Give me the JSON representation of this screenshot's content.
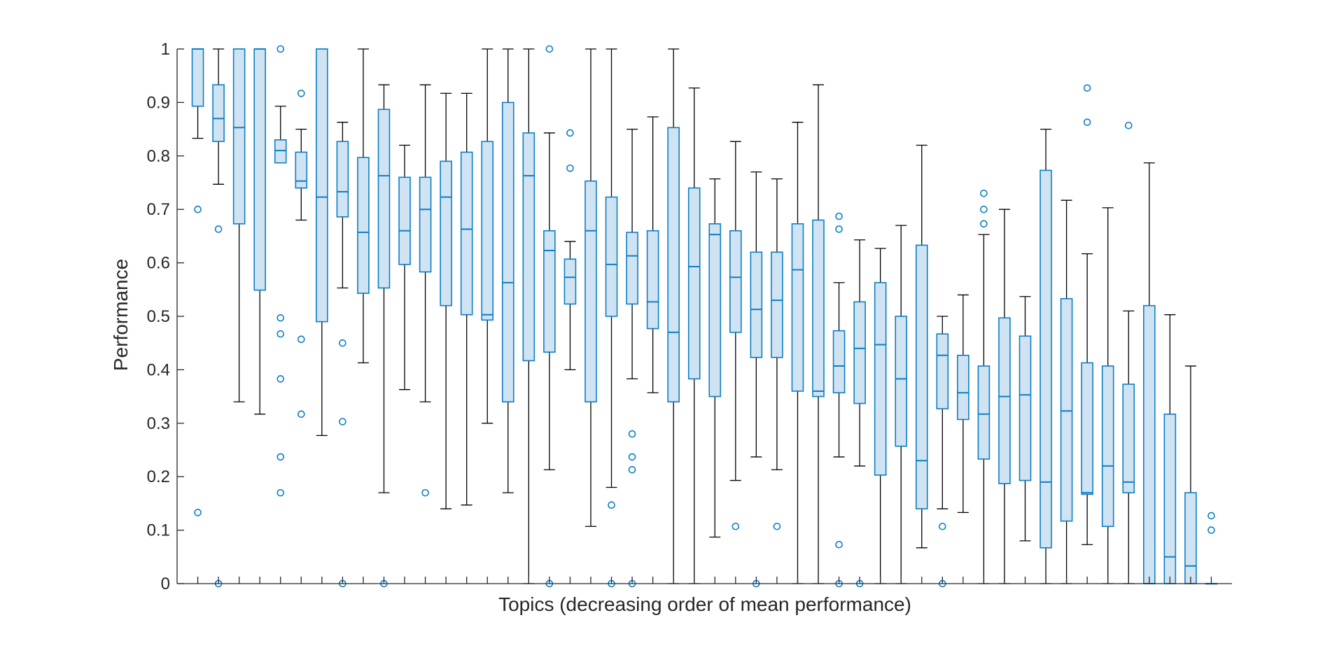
{
  "chart_data": {
    "type": "boxplot",
    "title": "",
    "xlabel": "Topics (decreasing order of mean performance)",
    "ylabel": "Performance",
    "ylim": [
      0,
      1
    ],
    "yticks": [
      0,
      0.1,
      0.2,
      0.3,
      0.4,
      0.5,
      0.6,
      0.7,
      0.8,
      0.9,
      1
    ],
    "ytick_labels": [
      "0",
      "0.1",
      "0.2",
      "0.3",
      "0.4",
      "0.5",
      "0.6",
      "0.7",
      "0.8",
      "0.9",
      "1"
    ],
    "xtick_labels": "none",
    "grid": false,
    "colors": {
      "box_fill": "#cfe3f3",
      "box_edge": "#0d7fc4",
      "whisker": "#000000",
      "outlier": "#0d7fc4",
      "axis": "#262626"
    },
    "boxes": [
      {
        "q1": 0.893,
        "median": 1.0,
        "q3": 1.0,
        "lw": 0.833,
        "uw": 1.0,
        "outliers": [
          0.7,
          0.133
        ]
      },
      {
        "q1": 0.827,
        "median": 0.87,
        "q3": 0.933,
        "lw": 0.747,
        "uw": 1.0,
        "outliers": [
          0.663,
          0.0
        ]
      },
      {
        "q1": 0.673,
        "median": 0.853,
        "q3": 1.0,
        "lw": 0.34,
        "uw": 1.0,
        "outliers": []
      },
      {
        "q1": 0.549,
        "median": 1.0,
        "q3": 1.0,
        "lw": 0.317,
        "uw": 1.0,
        "outliers": []
      },
      {
        "q1": 0.787,
        "median": 0.81,
        "q3": 0.83,
        "lw": 0.787,
        "uw": 0.893,
        "outliers": [
          1.0,
          0.497,
          0.467,
          0.383,
          0.237,
          0.17
        ]
      },
      {
        "q1": 0.74,
        "median": 0.753,
        "q3": 0.807,
        "lw": 0.68,
        "uw": 0.85,
        "outliers": [
          0.917,
          0.457,
          0.317
        ]
      },
      {
        "q1": 0.49,
        "median": 0.723,
        "q3": 1.0,
        "lw": 0.277,
        "uw": 1.0,
        "outliers": []
      },
      {
        "q1": 0.686,
        "median": 0.733,
        "q3": 0.827,
        "lw": 0.553,
        "uw": 0.863,
        "outliers": [
          0.45,
          0.303,
          0.0
        ]
      },
      {
        "q1": 0.543,
        "median": 0.657,
        "q3": 0.797,
        "lw": 0.413,
        "uw": 1.0,
        "outliers": []
      },
      {
        "q1": 0.553,
        "median": 0.763,
        "q3": 0.887,
        "lw": 0.17,
        "uw": 0.933,
        "outliers": [
          0.0
        ]
      },
      {
        "q1": 0.597,
        "median": 0.66,
        "q3": 0.76,
        "lw": 0.363,
        "uw": 0.82,
        "outliers": []
      },
      {
        "q1": 0.583,
        "median": 0.7,
        "q3": 0.76,
        "lw": 0.34,
        "uw": 0.933,
        "outliers": [
          0.17
        ]
      },
      {
        "q1": 0.52,
        "median": 0.723,
        "q3": 0.79,
        "lw": 0.14,
        "uw": 0.917,
        "outliers": []
      },
      {
        "q1": 0.503,
        "median": 0.663,
        "q3": 0.807,
        "lw": 0.147,
        "uw": 0.917,
        "outliers": []
      },
      {
        "q1": 0.493,
        "median": 0.503,
        "q3": 0.827,
        "lw": 0.3,
        "uw": 1.0,
        "outliers": []
      },
      {
        "q1": 0.34,
        "median": 0.563,
        "q3": 0.9,
        "lw": 0.17,
        "uw": 1.0,
        "outliers": []
      },
      {
        "q1": 0.417,
        "median": 0.763,
        "q3": 0.843,
        "lw": 0.0,
        "uw": 1.0,
        "outliers": []
      },
      {
        "q1": 0.433,
        "median": 0.623,
        "q3": 0.66,
        "lw": 0.213,
        "uw": 0.843,
        "outliers": [
          1.0,
          0.0
        ]
      },
      {
        "q1": 0.523,
        "median": 0.573,
        "q3": 0.607,
        "lw": 0.4,
        "uw": 0.64,
        "outliers": [
          0.843,
          0.777
        ]
      },
      {
        "q1": 0.34,
        "median": 0.66,
        "q3": 0.753,
        "lw": 0.107,
        "uw": 1.0,
        "outliers": []
      },
      {
        "q1": 0.5,
        "median": 0.597,
        "q3": 0.723,
        "lw": 0.18,
        "uw": 1.0,
        "outliers": [
          0.147,
          0.0
        ]
      },
      {
        "q1": 0.523,
        "median": 0.613,
        "q3": 0.657,
        "lw": 0.383,
        "uw": 0.85,
        "outliers": [
          0.28,
          0.237,
          0.213,
          0.0
        ]
      },
      {
        "q1": 0.477,
        "median": 0.527,
        "q3": 0.66,
        "lw": 0.357,
        "uw": 0.873,
        "outliers": []
      },
      {
        "q1": 0.34,
        "median": 0.47,
        "q3": 0.853,
        "lw": 0.0,
        "uw": 1.0,
        "outliers": []
      },
      {
        "q1": 0.383,
        "median": 0.593,
        "q3": 0.74,
        "lw": 0.0,
        "uw": 0.927,
        "outliers": []
      },
      {
        "q1": 0.35,
        "median": 0.653,
        "q3": 0.673,
        "lw": 0.087,
        "uw": 0.757,
        "outliers": []
      },
      {
        "q1": 0.47,
        "median": 0.573,
        "q3": 0.66,
        "lw": 0.193,
        "uw": 0.827,
        "outliers": [
          0.107
        ]
      },
      {
        "q1": 0.423,
        "median": 0.513,
        "q3": 0.62,
        "lw": 0.237,
        "uw": 0.77,
        "outliers": [
          0.0
        ]
      },
      {
        "q1": 0.423,
        "median": 0.53,
        "q3": 0.62,
        "lw": 0.213,
        "uw": 0.757,
        "outliers": [
          0.107
        ]
      },
      {
        "q1": 0.36,
        "median": 0.587,
        "q3": 0.673,
        "lw": 0.0,
        "uw": 0.863,
        "outliers": []
      },
      {
        "q1": 0.35,
        "median": 0.36,
        "q3": 0.68,
        "lw": 0.0,
        "uw": 0.933,
        "outliers": []
      },
      {
        "q1": 0.357,
        "median": 0.407,
        "q3": 0.473,
        "lw": 0.237,
        "uw": 0.563,
        "outliers": [
          0.687,
          0.663,
          0.073,
          0.0
        ]
      },
      {
        "q1": 0.337,
        "median": 0.44,
        "q3": 0.527,
        "lw": 0.22,
        "uw": 0.643,
        "outliers": [
          0.0
        ]
      },
      {
        "q1": 0.203,
        "median": 0.447,
        "q3": 0.563,
        "lw": 0.0,
        "uw": 0.627,
        "outliers": []
      },
      {
        "q1": 0.257,
        "median": 0.383,
        "q3": 0.5,
        "lw": 0.0,
        "uw": 0.67,
        "outliers": []
      },
      {
        "q1": 0.14,
        "median": 0.23,
        "q3": 0.633,
        "lw": 0.067,
        "uw": 0.82,
        "outliers": []
      },
      {
        "q1": 0.327,
        "median": 0.427,
        "q3": 0.467,
        "lw": 0.14,
        "uw": 0.5,
        "outliers": [
          0.107,
          0.0
        ]
      },
      {
        "q1": 0.307,
        "median": 0.357,
        "q3": 0.427,
        "lw": 0.133,
        "uw": 0.54,
        "outliers": []
      },
      {
        "q1": 0.233,
        "median": 0.317,
        "q3": 0.407,
        "lw": 0.0,
        "uw": 0.653,
        "outliers": [
          0.73,
          0.7,
          0.673
        ]
      },
      {
        "q1": 0.187,
        "median": 0.35,
        "q3": 0.497,
        "lw": 0.0,
        "uw": 0.7,
        "outliers": []
      },
      {
        "q1": 0.193,
        "median": 0.353,
        "q3": 0.463,
        "lw": 0.08,
        "uw": 0.537,
        "outliers": []
      },
      {
        "q1": 0.067,
        "median": 0.19,
        "q3": 0.773,
        "lw": 0.0,
        "uw": 0.85,
        "outliers": []
      },
      {
        "q1": 0.117,
        "median": 0.323,
        "q3": 0.533,
        "lw": 0.0,
        "uw": 0.717,
        "outliers": []
      },
      {
        "q1": 0.167,
        "median": 0.17,
        "q3": 0.413,
        "lw": 0.073,
        "uw": 0.617,
        "outliers": [
          0.927,
          0.863
        ]
      },
      {
        "q1": 0.107,
        "median": 0.22,
        "q3": 0.407,
        "lw": 0.0,
        "uw": 0.703,
        "outliers": []
      },
      {
        "q1": 0.17,
        "median": 0.19,
        "q3": 0.373,
        "lw": 0.0,
        "uw": 0.51,
        "outliers": [
          0.857
        ]
      },
      {
        "q1": 0.0,
        "median": 0.0,
        "q3": 0.52,
        "lw": 0.0,
        "uw": 0.787,
        "outliers": []
      },
      {
        "q1": 0.0,
        "median": 0.05,
        "q3": 0.317,
        "lw": 0.0,
        "uw": 0.503,
        "outliers": []
      },
      {
        "q1": 0.0,
        "median": 0.033,
        "q3": 0.17,
        "lw": 0.0,
        "uw": 0.407,
        "outliers": []
      },
      {
        "q1": 0.0,
        "median": 0.0,
        "q3": 0.0,
        "lw": 0.0,
        "uw": 0.0,
        "outliers": [
          0.127,
          0.1
        ]
      }
    ]
  }
}
